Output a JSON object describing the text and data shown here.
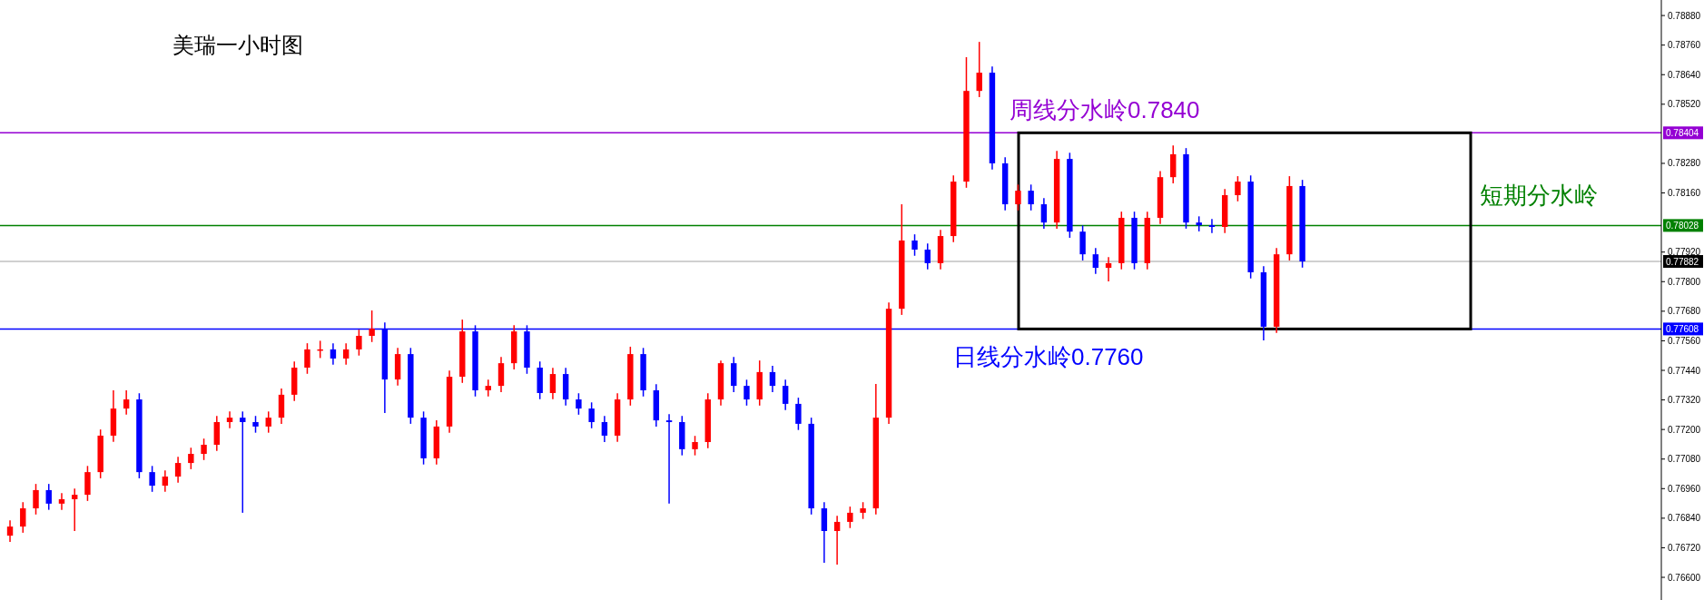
{
  "chart_data": {
    "type": "candlestick",
    "title": "美瑞一小时图",
    "categories": [
      null,
      null,
      null,
      null,
      null,
      null,
      null,
      null,
      null,
      null,
      null,
      null,
      null,
      null,
      null,
      null,
      null,
      null,
      null,
      null,
      null,
      null,
      null,
      null,
      null,
      null,
      null,
      null,
      null,
      null,
      null,
      null,
      null,
      null,
      null,
      null,
      null,
      null,
      null,
      null,
      null,
      null,
      null,
      null,
      null,
      null,
      null,
      null,
      null,
      null,
      null,
      null,
      null,
      null,
      null,
      null,
      null,
      null,
      null,
      null,
      null,
      null,
      null,
      null,
      null,
      null,
      null,
      null,
      null,
      null,
      null,
      null,
      null,
      null,
      null,
      null,
      null,
      null,
      null,
      null,
      null,
      null,
      null,
      null,
      null,
      null,
      null,
      null,
      null,
      null,
      null,
      null,
      null,
      null,
      null,
      null,
      null,
      null,
      null,
      null,
      null,
      null,
      null,
      null,
      null,
      null,
      null,
      null,
      null,
      null,
      null,
      null,
      null,
      null,
      null,
      null,
      null,
      null,
      null,
      null,
      null,
      null,
      null,
      null,
      null,
      null,
      null,
      null
    ],
    "ohlc": [
      [
        0.76769,
        0.76831,
        0.76744,
        0.76806
      ],
      [
        0.76806,
        0.76905,
        0.76781,
        0.7688
      ],
      [
        0.7688,
        0.76979,
        0.76855,
        0.76954
      ],
      [
        0.76954,
        0.76979,
        0.76874,
        0.76899
      ],
      [
        0.76899,
        0.76942,
        0.76874,
        0.76917
      ],
      [
        0.76917,
        0.7696,
        0.76788,
        0.76935
      ],
      [
        0.76935,
        0.77052,
        0.7691,
        0.77027
      ],
      [
        0.77027,
        0.772,
        0.77002,
        0.77175
      ],
      [
        0.77175,
        0.77359,
        0.7715,
        0.77285
      ],
      [
        0.77285,
        0.77359,
        0.7726,
        0.77322
      ],
      [
        0.77322,
        0.77347,
        0.77002,
        0.77027
      ],
      [
        0.77027,
        0.77052,
        0.76947,
        0.76972
      ],
      [
        0.76972,
        0.77034,
        0.76947,
        0.77009
      ],
      [
        0.77009,
        0.77089,
        0.76984,
        0.77064
      ],
      [
        0.77064,
        0.77126,
        0.77039,
        0.77101
      ],
      [
        0.77101,
        0.77163,
        0.77076,
        0.77138
      ],
      [
        0.77138,
        0.77255,
        0.77113,
        0.7723
      ],
      [
        0.7723,
        0.77273,
        0.77205,
        0.77248
      ],
      [
        0.77248,
        0.77273,
        0.76862,
        0.7723
      ],
      [
        0.7723,
        0.77255,
        0.77187,
        0.77212
      ],
      [
        0.77212,
        0.77273,
        0.77187,
        0.77248
      ],
      [
        0.77248,
        0.77366,
        0.77223,
        0.77341
      ],
      [
        0.77341,
        0.77476,
        0.77316,
        0.77451
      ],
      [
        0.77451,
        0.7755,
        0.77426,
        0.77525
      ],
      [
        0.77525,
        0.7756,
        0.7749,
        0.77525
      ],
      [
        0.77525,
        0.7755,
        0.77463,
        0.77488
      ],
      [
        0.77488,
        0.7755,
        0.77463,
        0.77525
      ],
      [
        0.77525,
        0.77605,
        0.775,
        0.7758
      ],
      [
        0.7758,
        0.77683,
        0.77555,
        0.77609
      ],
      [
        0.77609,
        0.77634,
        0.77267,
        0.77403
      ],
      [
        0.77403,
        0.77531,
        0.77378,
        0.77506
      ],
      [
        0.77506,
        0.77531,
        0.77223,
        0.77248
      ],
      [
        0.77248,
        0.77273,
        0.77058,
        0.77083
      ],
      [
        0.77083,
        0.77237,
        0.77058,
        0.77212
      ],
      [
        0.77212,
        0.77439,
        0.77187,
        0.77414
      ],
      [
        0.77414,
        0.77646,
        0.77389,
        0.77598
      ],
      [
        0.77598,
        0.77623,
        0.77334,
        0.77359
      ],
      [
        0.77359,
        0.77402,
        0.77334,
        0.77377
      ],
      [
        0.77377,
        0.77494,
        0.77352,
        0.77469
      ],
      [
        0.77469,
        0.77623,
        0.77444,
        0.77598
      ],
      [
        0.77598,
        0.77623,
        0.77426,
        0.77451
      ],
      [
        0.77451,
        0.77476,
        0.77323,
        0.77348
      ],
      [
        0.77348,
        0.7745,
        0.77323,
        0.77425
      ],
      [
        0.77425,
        0.7745,
        0.77297,
        0.77322
      ],
      [
        0.77322,
        0.77347,
        0.7726,
        0.77285
      ],
      [
        0.77285,
        0.7731,
        0.77205,
        0.7723
      ],
      [
        0.7723,
        0.77255,
        0.77149,
        0.77175
      ],
      [
        0.77175,
        0.77347,
        0.7715,
        0.77322
      ],
      [
        0.77322,
        0.77536,
        0.77297,
        0.77506
      ],
      [
        0.77506,
        0.77531,
        0.77334,
        0.77359
      ],
      [
        0.77359,
        0.77384,
        0.77212,
        0.77237
      ],
      [
        0.77237,
        0.77262,
        0.76899,
        0.7723
      ],
      [
        0.7723,
        0.77255,
        0.77095,
        0.7712
      ],
      [
        0.7712,
        0.77174,
        0.77095,
        0.77149
      ],
      [
        0.77149,
        0.77347,
        0.77124,
        0.77322
      ],
      [
        0.77322,
        0.7748,
        0.77297,
        0.77469
      ],
      [
        0.77469,
        0.77494,
        0.77352,
        0.77377
      ],
      [
        0.77377,
        0.77402,
        0.77297,
        0.77322
      ],
      [
        0.77322,
        0.7748,
        0.77297,
        0.77433
      ],
      [
        0.77433,
        0.77458,
        0.77352,
        0.77377
      ],
      [
        0.77377,
        0.77402,
        0.77279,
        0.77304
      ],
      [
        0.77304,
        0.77329,
        0.77198,
        0.77223
      ],
      [
        0.77223,
        0.77248,
        0.76855,
        0.7688
      ],
      [
        0.7688,
        0.76905,
        0.76659,
        0.76788
      ],
      [
        0.76788,
        0.7685,
        0.76652,
        0.76825
      ],
      [
        0.76825,
        0.76887,
        0.768,
        0.76862
      ],
      [
        0.76862,
        0.76905,
        0.76837,
        0.7688
      ],
      [
        0.7688,
        0.77385,
        0.76855,
        0.77248
      ],
      [
        0.77248,
        0.77715,
        0.77223,
        0.7769
      ],
      [
        0.7769,
        0.78114,
        0.77665,
        0.77967
      ],
      [
        0.77967,
        0.77992,
        0.77905,
        0.7793
      ],
      [
        0.7793,
        0.77955,
        0.7785,
        0.77875
      ],
      [
        0.77875,
        0.7801,
        0.7785,
        0.77985
      ],
      [
        0.77985,
        0.78231,
        0.7796,
        0.78206
      ],
      [
        0.78206,
        0.78711,
        0.78181,
        0.78574
      ],
      [
        0.78574,
        0.78773,
        0.78549,
        0.78648
      ],
      [
        0.78648,
        0.78673,
        0.78255,
        0.7828
      ],
      [
        0.7828,
        0.78305,
        0.78089,
        0.78114
      ],
      [
        0.78114,
        0.78194,
        0.78089,
        0.78169
      ],
      [
        0.78169,
        0.78194,
        0.78089,
        0.78114
      ],
      [
        0.78114,
        0.78139,
        0.78015,
        0.7804
      ],
      [
        0.7804,
        0.78331,
        0.78015,
        0.78298
      ],
      [
        0.78298,
        0.78323,
        0.77978,
        0.78003
      ],
      [
        0.78003,
        0.78028,
        0.77886,
        0.77911
      ],
      [
        0.77911,
        0.77936,
        0.77831,
        0.77856
      ],
      [
        0.77856,
        0.779,
        0.77801,
        0.77875
      ],
      [
        0.77875,
        0.78084,
        0.7785,
        0.78059
      ],
      [
        0.78059,
        0.78084,
        0.7785,
        0.77875
      ],
      [
        0.77875,
        0.78084,
        0.7785,
        0.78059
      ],
      [
        0.78059,
        0.78249,
        0.78034,
        0.78224
      ],
      [
        0.78224,
        0.78353,
        0.78199,
        0.78317
      ],
      [
        0.78317,
        0.78342,
        0.78015,
        0.7804
      ],
      [
        0.7804,
        0.78065,
        0.78004,
        0.78029
      ],
      [
        0.78029,
        0.78054,
        0.77997,
        0.78022
      ],
      [
        0.78022,
        0.78176,
        0.77997,
        0.78151
      ],
      [
        0.78151,
        0.78228,
        0.78126,
        0.78206
      ],
      [
        0.78206,
        0.78231,
        0.77813,
        0.77838
      ],
      [
        0.77838,
        0.77863,
        0.77562,
        0.77617
      ],
      [
        0.77617,
        0.77936,
        0.77592,
        0.77911
      ],
      [
        0.77911,
        0.78228,
        0.77886,
        0.78188
      ],
      [
        0.78188,
        0.78213,
        0.77857,
        0.77882
      ],
      null,
      null,
      null,
      null,
      null,
      null,
      null,
      null,
      null,
      null,
      null,
      null,
      null,
      null,
      null,
      null,
      null,
      null,
      null,
      null,
      null,
      null,
      null,
      null,
      null,
      null,
      null
    ],
    "colors": [
      "#ff0000",
      "#ff0000",
      "#ff0000",
      "#0000ff",
      "#ff0000",
      "#ff0000",
      "#ff0000",
      "#ff0000",
      "#ff0000",
      "#ff0000",
      "#0000ff",
      "#0000ff",
      "#ff0000",
      "#ff0000",
      "#ff0000",
      "#ff0000",
      "#ff0000",
      "#ff0000",
      "#0000ff",
      "#0000ff",
      "#ff0000",
      "#ff0000",
      "#ff0000",
      "#ff0000",
      "#ff0000",
      "#0000ff",
      "#ff0000",
      "#ff0000",
      "#ff0000",
      "#0000ff",
      "#ff0000",
      "#0000ff",
      "#0000ff",
      "#ff0000",
      "#ff0000",
      "#ff0000",
      "#0000ff",
      "#ff0000",
      "#ff0000",
      "#ff0000",
      "#0000ff",
      "#0000ff",
      "#ff0000",
      "#0000ff",
      "#0000ff",
      "#0000ff",
      "#0000ff",
      "#ff0000",
      "#ff0000",
      "#0000ff",
      "#0000ff",
      "#0000ff",
      "#0000ff",
      "#ff0000",
      "#ff0000",
      "#ff0000",
      "#0000ff",
      "#0000ff",
      "#ff0000",
      "#0000ff",
      "#0000ff",
      "#0000ff",
      "#0000ff",
      "#0000ff",
      "#ff0000",
      "#ff0000",
      "#ff0000",
      "#ff0000",
      "#ff0000",
      "#ff0000",
      "#0000ff",
      "#0000ff",
      "#ff0000",
      "#ff0000",
      "#ff0000",
      "#ff0000",
      "#0000ff",
      "#0000ff",
      "#ff0000",
      "#0000ff",
      "#0000ff",
      "#ff0000",
      "#0000ff",
      "#0000ff",
      "#0000ff",
      "#ff0000",
      "#ff0000",
      "#0000ff",
      "#ff0000",
      "#ff0000",
      "#ff0000",
      "#0000ff",
      "#0000ff",
      "#0000ff",
      "#ff0000",
      "#ff0000",
      "#0000ff",
      "#0000ff",
      "#ff0000",
      "#ff0000",
      "#0000ff",
      null,
      null,
      null,
      null,
      null,
      null,
      null,
      null,
      null,
      null,
      null,
      null,
      null,
      null,
      null,
      null,
      null,
      null,
      null,
      null,
      null,
      null,
      null,
      null,
      null,
      null,
      null
    ],
    "ylim": [
      0.76508,
      0.78943
    ],
    "yticks": [
      {
        "value": 0.7888,
        "label": "0.78880"
      },
      {
        "value": 0.7876,
        "label": "0.78760"
      },
      {
        "value": 0.7864,
        "label": "0.78640"
      },
      {
        "value": 0.7852,
        "label": "0.78520"
      },
      {
        "value": 0.7828,
        "label": "0.78280"
      },
      {
        "value": 0.7816,
        "label": "0.78160"
      },
      {
        "value": 0.7792,
        "label": "0.77920"
      },
      {
        "value": 0.778,
        "label": "0.77800"
      },
      {
        "value": 0.7768,
        "label": "0.77680"
      },
      {
        "value": 0.7756,
        "label": "0.77560"
      },
      {
        "value": 0.7744,
        "label": "0.77440"
      },
      {
        "value": 0.7732,
        "label": "0.77320"
      },
      {
        "value": 0.772,
        "label": "0.77200"
      },
      {
        "value": 0.7708,
        "label": "0.77080"
      },
      {
        "value": 0.7696,
        "label": "0.76960"
      },
      {
        "value": 0.7684,
        "label": "0.76840"
      },
      {
        "value": 0.7672,
        "label": "0.76720"
      },
      {
        "value": 0.766,
        "label": "0.76600"
      }
    ],
    "ref_lines": [
      {
        "axis": "y",
        "value": 0.78404,
        "label": "0.78404",
        "color": "#9400d3"
      },
      {
        "axis": "y",
        "value": 0.78028,
        "label": "0.78028",
        "color": "#008000"
      },
      {
        "axis": "y",
        "value": 0.77882,
        "label": "0.77882",
        "color": "#c0c0c0"
      },
      {
        "axis": "y",
        "value": 0.77608,
        "label": "0.77608",
        "color": "#0000ff"
      }
    ],
    "annotations": [
      {
        "text": "周线分水岭0.7840",
        "y": 0.78404
      },
      {
        "text": "短期分水岭",
        "y": 0.78028
      },
      {
        "text": "日线分水岭0.7760",
        "y": 0.77608
      }
    ],
    "grid": false
  }
}
